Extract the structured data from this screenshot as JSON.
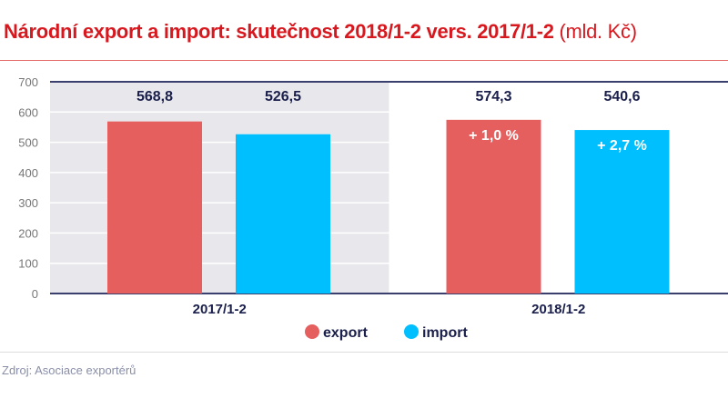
{
  "title": "Národní export a import: skutečnost 2018/1-2 vers. 2017/1-2",
  "title_unit": "(mld. Kč)",
  "source": "Zdroj: Asociace exportérů",
  "chart_data": {
    "type": "bar",
    "categories": [
      "2017/1-2",
      "2018/1-2"
    ],
    "series": [
      {
        "name": "export",
        "color": "#e55f5f",
        "values": [
          568.8,
          574.3
        ],
        "labels": [
          "568,8",
          "574,3"
        ],
        "change_labels": [
          "",
          "+ 1,0 %"
        ]
      },
      {
        "name": "import",
        "color": "#00bfff",
        "values": [
          526.5,
          540.6
        ],
        "labels": [
          "526,5",
          "540,6"
        ],
        "change_labels": [
          "",
          "+ 2,7 %"
        ]
      }
    ],
    "ylim": [
      0,
      700
    ],
    "yticks": [
      0,
      100,
      200,
      300,
      400,
      500,
      600,
      700
    ],
    "grid": true,
    "highlight_band_category": "2017/1-2",
    "highlight_band_color": "#e8e8ec",
    "legend": "bottom-center"
  }
}
